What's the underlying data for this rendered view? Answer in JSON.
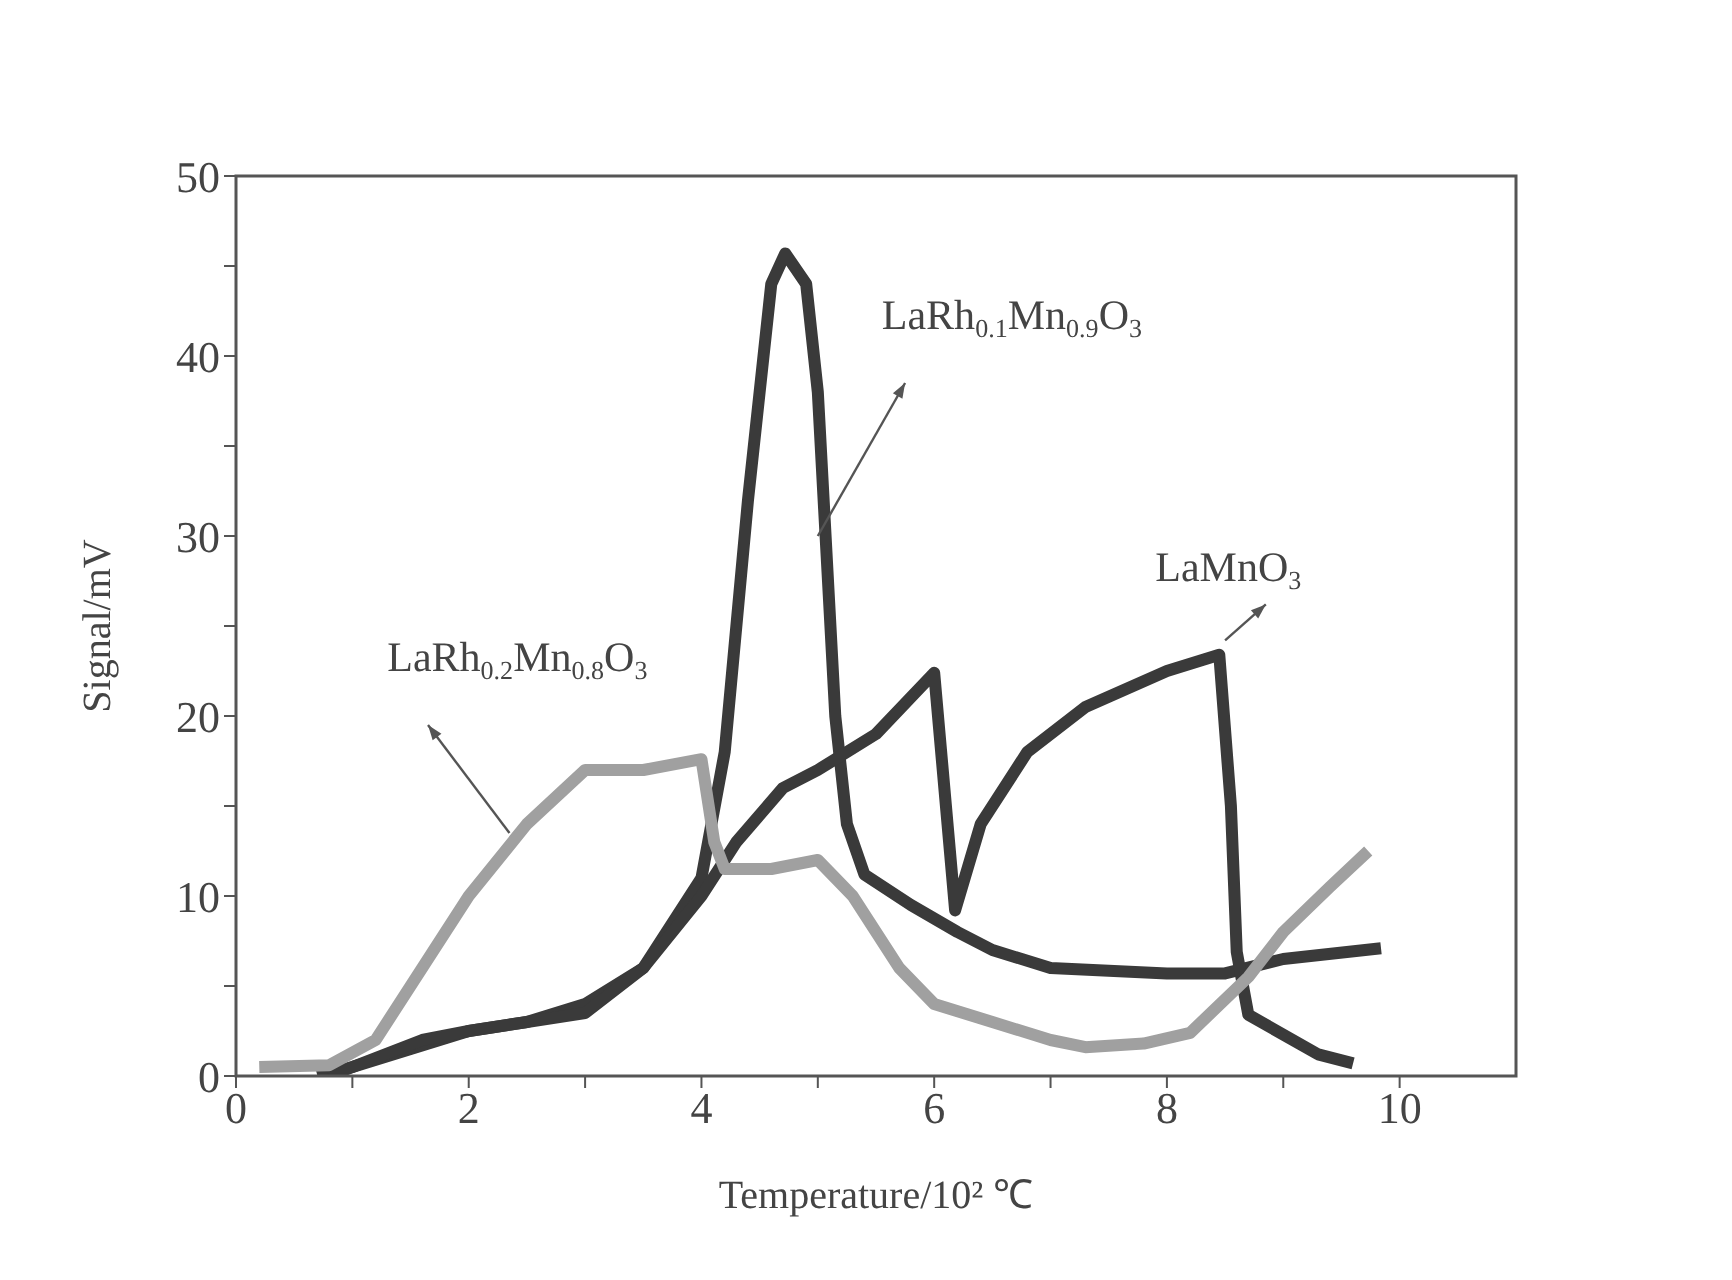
{
  "chart_data": {
    "type": "line",
    "xlabel": "Temperature/10² ℃",
    "ylabel": "Signal/mV",
    "xlim": [
      0,
      11
    ],
    "ylim": [
      0,
      50
    ],
    "xticks": [
      0,
      {
        "value": 1,
        "label": null
      },
      2,
      {
        "value": 3,
        "label": null
      },
      4,
      {
        "value": 5,
        "label": null
      },
      6,
      {
        "value": 7,
        "label": null
      },
      8,
      {
        "value": 9,
        "label": null
      },
      10
    ],
    "yticks": [
      0,
      {
        "value": 5,
        "label": null
      },
      10,
      {
        "value": 15,
        "label": null
      },
      20,
      {
        "value": 25,
        "label": null
      },
      30,
      {
        "value": 35,
        "label": null
      },
      40,
      {
        "value": 45,
        "label": null
      },
      50
    ],
    "marker": "none",
    "line_style": "solid",
    "series": [
      {
        "name": "LaRh$_{0.1}$Mn$_{0.9}$O$_{3}$",
        "color": "#3a3a3a",
        "x": [
          0.7,
          1,
          1.5,
          2,
          2.5,
          3,
          3.5,
          4,
          4.2,
          4.4,
          4.6,
          4.72,
          4.9,
          5,
          5.15,
          5.25,
          5.4,
          5.8,
          6.2,
          6.5,
          7,
          8,
          8.5,
          9,
          9.84
        ],
        "values": [
          0,
          0.5,
          1.5,
          2.5,
          3,
          4,
          6,
          11,
          18,
          32,
          44,
          45.7,
          44,
          38,
          20,
          14,
          11.2,
          9.5,
          8,
          7,
          6,
          5.7,
          5.7,
          6.5,
          7.1
        ]
      },
      {
        "name": "LaMnO$_{3}$",
        "color": "#3a3a3a",
        "x": [
          0.8,
          1.2,
          1.6,
          2,
          2.5,
          3,
          3.5,
          4,
          4.3,
          4.7,
          5,
          5.5,
          6,
          6.18,
          6.4,
          6.8,
          7.3,
          8,
          8.45,
          8.55,
          8.6,
          8.7,
          9.3,
          9.6
        ],
        "values": [
          0,
          1,
          2,
          2.5,
          3,
          3.5,
          6,
          10,
          13,
          16,
          17,
          19,
          22.4,
          9.2,
          14,
          18,
          20.5,
          22.5,
          23.4,
          15,
          6.9,
          3.4,
          1.2,
          0.7
        ]
      },
      {
        "name": "LaRh$_{0.2}$Mn$_{0.8}$O$_{3}$",
        "color": "#a0a0a0",
        "x": [
          0.2,
          0.8,
          1.2,
          1.6,
          2,
          2.5,
          3,
          3.5,
          4,
          4.11,
          4.2,
          4.6,
          5,
          5.3,
          5.7,
          6,
          6.5,
          7,
          7.3,
          7.8,
          8.2,
          8.7,
          9,
          9.4,
          9.73
        ],
        "values": [
          0.5,
          0.6,
          2,
          6,
          10,
          14,
          17,
          17,
          17.6,
          13,
          11.5,
          11.5,
          12,
          10,
          6,
          4,
          3,
          2,
          1.6,
          1.8,
          2.4,
          5.5,
          8,
          10.5,
          12.5
        ]
      }
    ]
  }
}
